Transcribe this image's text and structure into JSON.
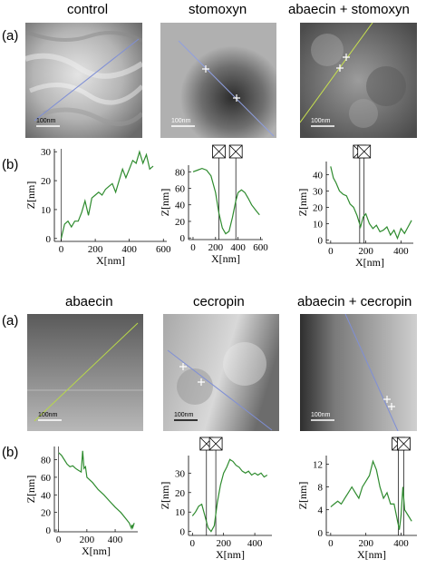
{
  "row_labels": {
    "a": "(a)",
    "b": "(b)"
  },
  "groups": [
    {
      "panels": [
        {
          "title": "control",
          "scale_label": "100nm",
          "line_color": "#7f8fd6",
          "image_tone": "bright-fibrous",
          "cursor_marks": 0
        },
        {
          "title": "stomoxyn",
          "scale_label": "100nm",
          "line_color": "#8f9fe0",
          "image_tone": "dark-center",
          "cursor_marks": 2
        },
        {
          "title": "abaecin + stomoxyn",
          "scale_label": "100nm",
          "line_color": "#c7e04f",
          "image_tone": "mottled",
          "cursor_marks": 2
        }
      ]
    },
    {
      "panels": [
        {
          "title": "abaecin",
          "scale_label": "100nm",
          "line_color": "#b8d84a",
          "image_tone": "smooth-gradient",
          "cursor_marks": 0
        },
        {
          "title": "cecropin",
          "scale_label": "100nm",
          "line_color": "#7f8fd6",
          "image_tone": "light-right",
          "cursor_marks": 2
        },
        {
          "title": "abaecin + cecropin",
          "scale_label": "100nm",
          "line_color": "#7f8fd6",
          "image_tone": "dark-left",
          "cursor_marks": 2
        }
      ]
    }
  ],
  "chart_data": [
    {
      "type": "line",
      "title": "",
      "xlabel": "X[nm]",
      "ylabel": "Z[nm]",
      "xlim": [
        -40,
        620
      ],
      "ylim": [
        -1,
        31
      ],
      "xticks": [
        0,
        200,
        400,
        600
      ],
      "yticks": [
        0,
        10,
        20,
        30
      ],
      "markers": [],
      "series": [
        {
          "color": "#2e8b2e",
          "x": [
            0,
            20,
            40,
            60,
            80,
            100,
            120,
            140,
            160,
            180,
            200,
            220,
            240,
            260,
            280,
            300,
            320,
            340,
            360,
            380,
            400,
            420,
            440,
            460,
            480,
            500,
            520,
            540
          ],
          "y": [
            0,
            5,
            6,
            4,
            6,
            6,
            9,
            13,
            8,
            14,
            15,
            16,
            15,
            17,
            18,
            19,
            16,
            20,
            24,
            21,
            24,
            27,
            26,
            30,
            26,
            29,
            24,
            25
          ]
        }
      ]
    },
    {
      "type": "line",
      "title": "",
      "xlabel": "X[nm]",
      "ylabel": "Z[nm]",
      "xlim": [
        -40,
        620
      ],
      "ylim": [
        -2,
        88
      ],
      "xticks": [
        0,
        200,
        400,
        600
      ],
      "yticks": [
        0,
        20,
        40,
        60,
        80
      ],
      "markers": [
        230,
        380
      ],
      "series": [
        {
          "color": "#2e8b2e",
          "x": [
            0,
            40,
            80,
            120,
            160,
            200,
            230,
            260,
            290,
            320,
            350,
            380,
            400,
            430,
            460,
            490,
            520,
            560,
            590
          ],
          "y": [
            80,
            82,
            84,
            82,
            75,
            55,
            30,
            12,
            5,
            8,
            25,
            45,
            55,
            58,
            55,
            48,
            40,
            33,
            28
          ]
        }
      ]
    },
    {
      "type": "line",
      "title": "",
      "xlabel": "X[nm]",
      "ylabel": "Z[nm]",
      "xlim": [
        -25,
        470
      ],
      "ylim": [
        -2,
        48
      ],
      "xticks": [
        0,
        200,
        400
      ],
      "yticks": [
        0,
        10,
        20,
        30,
        40
      ],
      "markers": [
        165,
        190
      ],
      "series": [
        {
          "color": "#2e8b2e",
          "x": [
            0,
            15,
            30,
            50,
            70,
            90,
            110,
            130,
            150,
            170,
            185,
            200,
            220,
            240,
            260,
            280,
            300,
            320,
            340,
            360,
            380,
            400,
            420,
            440,
            460
          ],
          "y": [
            45,
            38,
            35,
            30,
            28,
            27,
            22,
            20,
            15,
            8,
            14,
            16,
            10,
            7,
            9,
            5,
            6,
            8,
            3,
            6,
            1,
            7,
            4,
            8,
            12
          ]
        }
      ]
    },
    {
      "type": "line",
      "title": "",
      "xlabel": "X[nm]",
      "ylabel": "Z[nm]",
      "xlim": [
        -30,
        560
      ],
      "ylim": [
        -2,
        95
      ],
      "xticks": [
        0,
        200,
        400
      ],
      "yticks": [
        0,
        20,
        40,
        60,
        80
      ],
      "markers": [],
      "series": [
        {
          "color": "#2e8b2e",
          "x": [
            0,
            20,
            40,
            60,
            80,
            100,
            120,
            140,
            160,
            170,
            180,
            190,
            200,
            240,
            280,
            320,
            360,
            400,
            440,
            480,
            500,
            515,
            520,
            525,
            535
          ],
          "y": [
            88,
            85,
            80,
            75,
            72,
            73,
            70,
            68,
            66,
            90,
            70,
            72,
            60,
            54,
            46,
            40,
            33,
            26,
            20,
            12,
            8,
            2,
            6,
            3,
            8
          ]
        }
      ]
    },
    {
      "type": "line",
      "title": "",
      "xlabel": "X[nm]",
      "ylabel": "Z[nm]",
      "xlim": [
        -25,
        510
      ],
      "ylim": [
        -2,
        39
      ],
      "xticks": [
        0,
        200,
        400
      ],
      "yticks": [
        0,
        10,
        20,
        30
      ],
      "markers": [
        90,
        150
      ],
      "series": [
        {
          "color": "#2e8b2e",
          "x": [
            0,
            20,
            40,
            60,
            80,
            100,
            120,
            140,
            160,
            180,
            200,
            220,
            240,
            260,
            280,
            300,
            320,
            340,
            360,
            380,
            400,
            420,
            440,
            460,
            480
          ],
          "y": [
            8,
            10,
            13,
            14,
            8,
            2,
            0,
            3,
            15,
            24,
            30,
            33,
            37,
            36,
            34,
            33,
            31,
            30,
            31,
            29,
            30,
            29,
            30,
            28,
            29
          ]
        }
      ]
    },
    {
      "type": "line",
      "title": "",
      "xlabel": "X[nm]",
      "ylabel": "Z[nm]",
      "xlim": [
        -25,
        490
      ],
      "ylim": [
        -0.5,
        13.5
      ],
      "xticks": [
        0,
        200,
        400
      ],
      "yticks": [
        0,
        4,
        8,
        12
      ],
      "markers": [
        385,
        415
      ],
      "series": [
        {
          "color": "#2e8b2e",
          "x": [
            0,
            20,
            40,
            60,
            80,
            100,
            120,
            140,
            160,
            180,
            200,
            220,
            240,
            260,
            280,
            300,
            320,
            340,
            360,
            380,
            390,
            400,
            410,
            420,
            440,
            460
          ],
          "y": [
            4.5,
            5,
            5.5,
            5,
            6,
            7,
            8,
            7,
            6,
            8,
            9,
            10,
            12.5,
            11,
            8,
            6,
            7,
            5,
            5,
            2,
            0.5,
            3,
            8,
            4,
            3,
            2
          ]
        }
      ]
    }
  ]
}
